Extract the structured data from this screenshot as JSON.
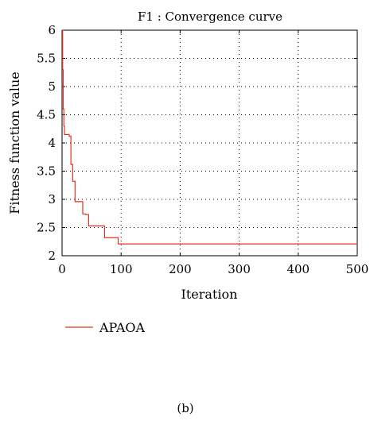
{
  "chart_data": {
    "type": "line",
    "title": "F1 : Convergence curve",
    "xlabel": "Iteration",
    "ylabel": "Fitness function value",
    "xlim": [
      0,
      500
    ],
    "ylim": [
      2,
      6
    ],
    "x_ticks": [
      0,
      100,
      200,
      300,
      400,
      500
    ],
    "y_ticks": [
      2,
      2.5,
      3,
      3.5,
      4,
      4.5,
      5,
      5.5,
      6
    ],
    "x_tick_labels": [
      "0",
      "100",
      "200",
      "300",
      "400",
      "500"
    ],
    "y_tick_labels": [
      "2",
      "2.5",
      "3",
      "3.5",
      "4",
      "4.5",
      "5",
      "5.5",
      "6"
    ],
    "grid": "dotted",
    "legend_position": "bottom-left",
    "series": [
      {
        "name": "APAOA",
        "color": "#e8321f",
        "x": [
          0,
          1,
          2,
          3,
          4,
          12,
          15,
          18,
          22,
          28,
          35,
          40,
          45,
          55,
          68,
          72,
          88,
          92,
          95,
          500
        ],
        "y": [
          6.0,
          5.3,
          4.6,
          4.3,
          4.15,
          4.12,
          3.62,
          3.32,
          2.96,
          2.96,
          2.74,
          2.73,
          2.53,
          2.53,
          2.53,
          2.32,
          2.32,
          2.32,
          2.21,
          2.21
        ]
      }
    ]
  },
  "caption": "(b)"
}
